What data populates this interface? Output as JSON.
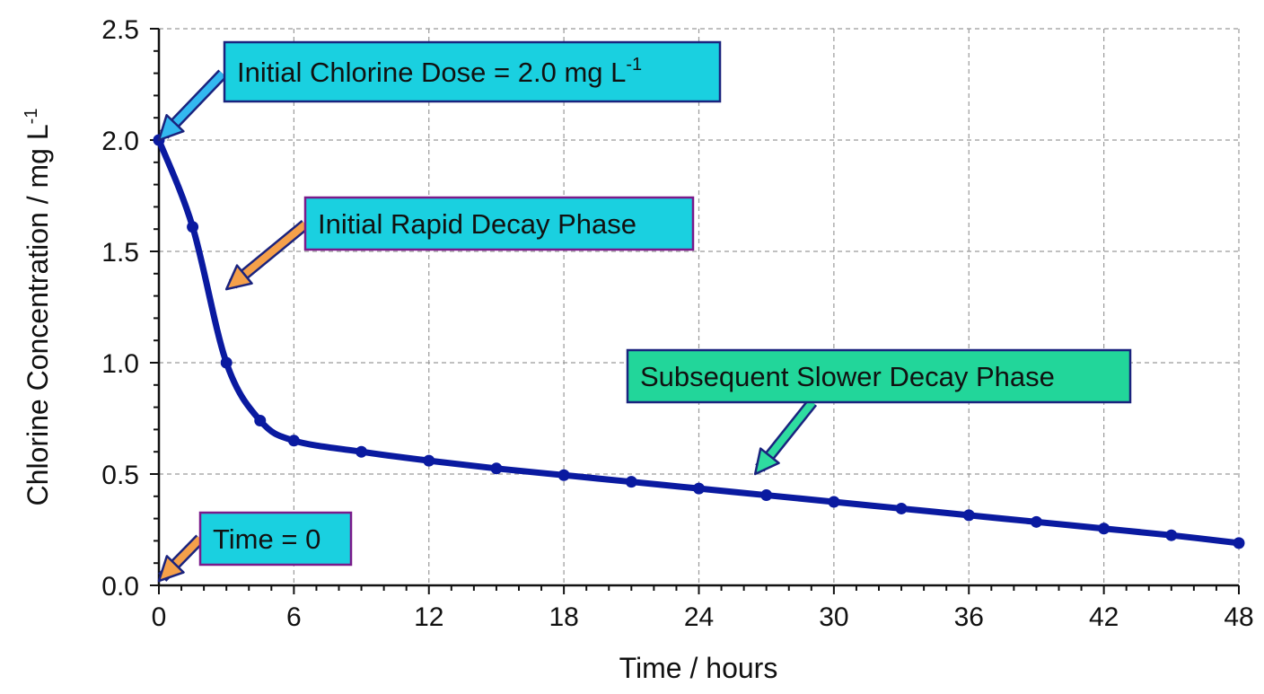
{
  "chart_data": {
    "type": "line",
    "title": "",
    "xlabel": "Time / hours",
    "ylabel": "Chlorine Concentration / mg L",
    "ylabel_superscript": "-1",
    "xlim": [
      0,
      48
    ],
    "ylim": [
      0.0,
      2.5
    ],
    "x_ticks": [
      "0",
      "6",
      "12",
      "18",
      "24",
      "30",
      "36",
      "42",
      "48"
    ],
    "y_ticks": [
      "0.0",
      "0.5",
      "1.0",
      "1.5",
      "2.0",
      "2.5"
    ],
    "grid": true,
    "series": [
      {
        "color": "#0a1aa0",
        "x": [
          0,
          1.5,
          3,
          4.5,
          6,
          9,
          12,
          15,
          18,
          21,
          24,
          27,
          30,
          33,
          36,
          39,
          42,
          45,
          48
        ],
        "values": [
          2.0,
          1.61,
          1.0,
          0.74,
          0.65,
          0.6,
          0.56,
          0.525,
          0.495,
          0.465,
          0.435,
          0.405,
          0.375,
          0.345,
          0.315,
          0.285,
          0.255,
          0.225,
          0.19
        ]
      }
    ],
    "annotations": [
      {
        "text": "Initial Chlorine Dose = 2.0 mg L",
        "superscript": "-1",
        "fill": "#1ad0e0",
        "arrow_color": "#33b8f0",
        "points_to": [
          0,
          2.0
        ]
      },
      {
        "text": "Initial Rapid Decay Phase",
        "superscript": "",
        "fill": "#1ad0e0",
        "arrow_color": "#f5a04a",
        "points_to": [
          3,
          1.33
        ]
      },
      {
        "text": "Subsequent Slower Decay Phase",
        "superscript": "",
        "fill": "#22d69a",
        "arrow_color": "#2fdca0",
        "points_to": [
          26.5,
          0.5
        ]
      },
      {
        "text": "Time = 0",
        "superscript": "",
        "fill": "#1ad0e0",
        "arrow_color": "#f5a04a",
        "points_to": [
          0,
          0.02
        ]
      }
    ]
  }
}
